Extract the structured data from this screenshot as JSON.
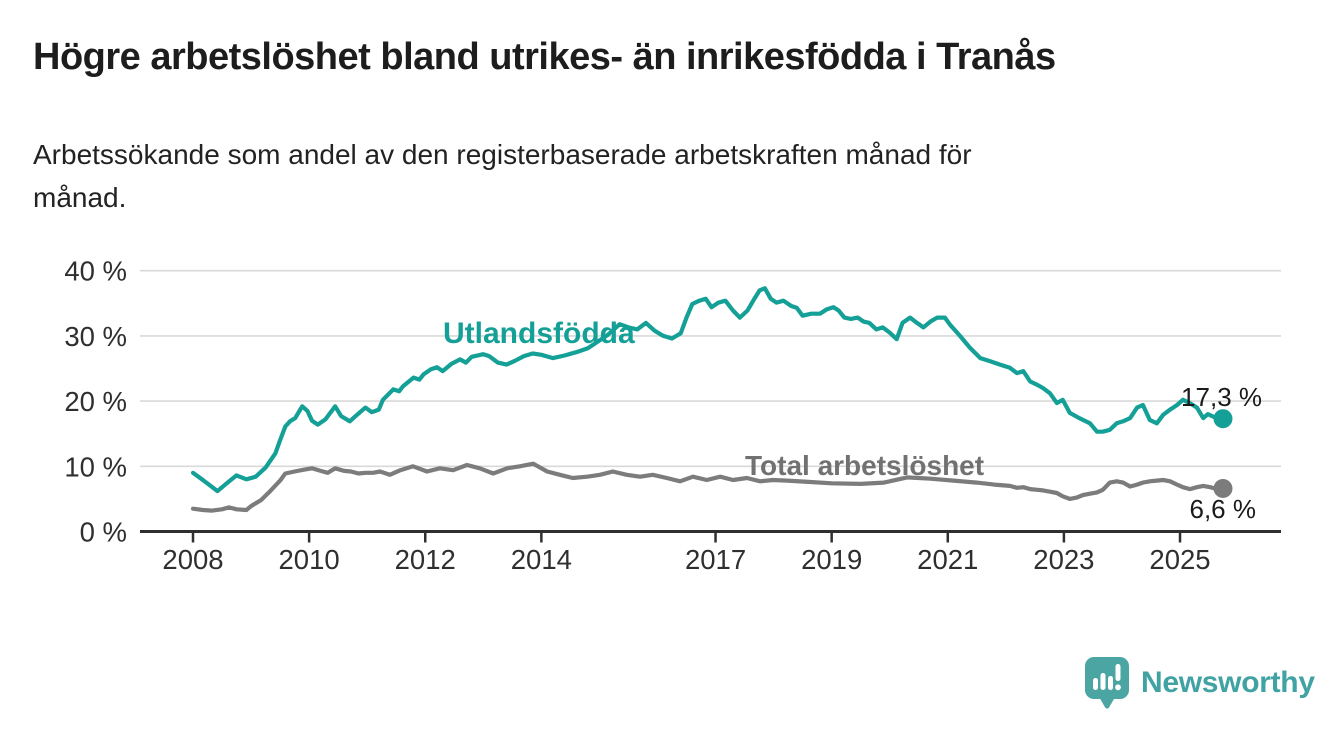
{
  "header": {
    "title": "Högre arbetslöshet bland utrikes- än inrikesfödda i Tranås",
    "subtitle_line1": "Arbetssökande som andel av den registerbaserade arbetskraften månad för",
    "subtitle_line2": "månad."
  },
  "chart_data": {
    "type": "line",
    "title": "Högre arbetslöshet bland utrikes- än inrikesfödda i Tranås",
    "subtitle": "Arbetssökande som andel av den registerbaserade arbetskraften månad för månad.",
    "unit": "%",
    "xlabel": "",
    "ylabel": "",
    "ylim": [
      0,
      42
    ],
    "grid": "horizontal",
    "x_tick_values": [
      2008,
      2010,
      2012,
      2014,
      2017,
      2019,
      2021,
      2023,
      2025
    ],
    "x_tick_labels": [
      "2008",
      "2010",
      "2012",
      "2014",
      "2017",
      "2019",
      "2021",
      "2023",
      "2025"
    ],
    "y_tick_values": [
      0,
      10,
      20,
      30,
      40
    ],
    "y_tick_labels": [
      "0 %",
      "10 %",
      "20 %",
      "30 %",
      "40 %"
    ],
    "colors": {
      "axis": "#2f2f2f",
      "gridline": "#d9d9d9",
      "value_label": "#1b1b1b"
    },
    "series": [
      {
        "name": "Utlandsfödda",
        "color": "#14a096",
        "end_label": "17,3 %",
        "points": [
          [
            2008.0,
            9.0
          ],
          [
            2008.17,
            7.9
          ],
          [
            2008.42,
            6.2
          ],
          [
            2008.58,
            7.4
          ],
          [
            2008.75,
            8.6
          ],
          [
            2008.92,
            8.0
          ],
          [
            2009.08,
            8.4
          ],
          [
            2009.25,
            9.8
          ],
          [
            2009.42,
            12.0
          ],
          [
            2009.5,
            14.0
          ],
          [
            2009.59,
            16.1
          ],
          [
            2009.67,
            16.9
          ],
          [
            2009.76,
            17.4
          ],
          [
            2009.88,
            19.2
          ],
          [
            2009.97,
            18.5
          ],
          [
            2010.05,
            17.0
          ],
          [
            2010.15,
            16.4
          ],
          [
            2010.28,
            17.2
          ],
          [
            2010.45,
            19.2
          ],
          [
            2010.55,
            17.7
          ],
          [
            2010.7,
            16.9
          ],
          [
            2010.8,
            17.7
          ],
          [
            2010.97,
            19.0
          ],
          [
            2011.08,
            18.3
          ],
          [
            2011.2,
            18.7
          ],
          [
            2011.27,
            20.2
          ],
          [
            2011.45,
            21.8
          ],
          [
            2011.55,
            21.5
          ],
          [
            2011.62,
            22.3
          ],
          [
            2011.8,
            23.6
          ],
          [
            2011.9,
            23.3
          ],
          [
            2011.97,
            24.1
          ],
          [
            2012.1,
            24.9
          ],
          [
            2012.2,
            25.2
          ],
          [
            2012.3,
            24.6
          ],
          [
            2012.45,
            25.7
          ],
          [
            2012.6,
            26.4
          ],
          [
            2012.7,
            25.9
          ],
          [
            2012.8,
            26.8
          ],
          [
            2013.0,
            27.2
          ],
          [
            2013.1,
            26.9
          ],
          [
            2013.25,
            25.9
          ],
          [
            2013.4,
            25.6
          ],
          [
            2013.55,
            26.2
          ],
          [
            2013.7,
            26.9
          ],
          [
            2013.85,
            27.3
          ],
          [
            2014.0,
            27.1
          ],
          [
            2014.2,
            26.6
          ],
          [
            2014.4,
            27.0
          ],
          [
            2014.6,
            27.5
          ],
          [
            2014.8,
            28.1
          ],
          [
            2015.0,
            29.3
          ],
          [
            2015.15,
            30.2
          ],
          [
            2015.35,
            31.8
          ],
          [
            2015.5,
            31.3
          ],
          [
            2015.65,
            31.0
          ],
          [
            2015.8,
            32.0
          ],
          [
            2015.95,
            30.8
          ],
          [
            2016.1,
            30.0
          ],
          [
            2016.25,
            29.6
          ],
          [
            2016.4,
            30.4
          ],
          [
            2016.5,
            32.8
          ],
          [
            2016.6,
            34.9
          ],
          [
            2016.72,
            35.4
          ],
          [
            2016.83,
            35.7
          ],
          [
            2016.93,
            34.4
          ],
          [
            2017.05,
            35.1
          ],
          [
            2017.17,
            35.4
          ],
          [
            2017.3,
            33.9
          ],
          [
            2017.42,
            32.8
          ],
          [
            2017.55,
            33.9
          ],
          [
            2017.67,
            35.7
          ],
          [
            2017.76,
            37.0
          ],
          [
            2017.85,
            37.3
          ],
          [
            2017.95,
            35.7
          ],
          [
            2018.05,
            35.1
          ],
          [
            2018.17,
            35.4
          ],
          [
            2018.3,
            34.6
          ],
          [
            2018.4,
            34.3
          ],
          [
            2018.5,
            33.1
          ],
          [
            2018.65,
            33.4
          ],
          [
            2018.8,
            33.4
          ],
          [
            2018.92,
            34.1
          ],
          [
            2019.03,
            34.4
          ],
          [
            2019.12,
            33.9
          ],
          [
            2019.22,
            32.8
          ],
          [
            2019.33,
            32.6
          ],
          [
            2019.45,
            32.8
          ],
          [
            2019.55,
            32.2
          ],
          [
            2019.65,
            32.0
          ],
          [
            2019.77,
            31.0
          ],
          [
            2019.88,
            31.3
          ],
          [
            2020.0,
            30.5
          ],
          [
            2020.12,
            29.5
          ],
          [
            2020.22,
            32.0
          ],
          [
            2020.35,
            32.8
          ],
          [
            2020.47,
            32.0
          ],
          [
            2020.58,
            31.3
          ],
          [
            2020.7,
            32.2
          ],
          [
            2020.82,
            32.8
          ],
          [
            2020.95,
            32.8
          ],
          [
            2021.04,
            31.7
          ],
          [
            2021.21,
            30.0
          ],
          [
            2021.38,
            28.2
          ],
          [
            2021.56,
            26.6
          ],
          [
            2021.73,
            26.1
          ],
          [
            2021.9,
            25.6
          ],
          [
            2022.07,
            25.1
          ],
          [
            2022.19,
            24.3
          ],
          [
            2022.3,
            24.6
          ],
          [
            2022.42,
            23.0
          ],
          [
            2022.54,
            22.5
          ],
          [
            2022.64,
            22.0
          ],
          [
            2022.76,
            21.2
          ],
          [
            2022.88,
            19.7
          ],
          [
            2022.98,
            20.2
          ],
          [
            2023.1,
            18.2
          ],
          [
            2023.22,
            17.6
          ],
          [
            2023.33,
            17.1
          ],
          [
            2023.45,
            16.6
          ],
          [
            2023.57,
            15.3
          ],
          [
            2023.67,
            15.3
          ],
          [
            2023.79,
            15.6
          ],
          [
            2023.91,
            16.6
          ],
          [
            2024.02,
            16.9
          ],
          [
            2024.14,
            17.4
          ],
          [
            2024.26,
            19.0
          ],
          [
            2024.36,
            19.4
          ],
          [
            2024.48,
            17.1
          ],
          [
            2024.6,
            16.6
          ],
          [
            2024.71,
            17.9
          ],
          [
            2024.83,
            18.7
          ],
          [
            2024.95,
            19.4
          ],
          [
            2025.05,
            20.2
          ],
          [
            2025.17,
            19.7
          ],
          [
            2025.29,
            19.0
          ],
          [
            2025.4,
            17.4
          ],
          [
            2025.48,
            18.0
          ],
          [
            2025.6,
            17.5
          ],
          [
            2025.74,
            17.3
          ]
        ]
      },
      {
        "name": "Total arbetslöshet",
        "color": "#7c7c7c",
        "end_label": "6,6 %",
        "points": [
          [
            2008.0,
            3.5
          ],
          [
            2008.17,
            3.3
          ],
          [
            2008.33,
            3.2
          ],
          [
            2008.5,
            3.4
          ],
          [
            2008.62,
            3.7
          ],
          [
            2008.75,
            3.4
          ],
          [
            2008.92,
            3.3
          ],
          [
            2009.0,
            3.9
          ],
          [
            2009.17,
            4.8
          ],
          [
            2009.33,
            6.2
          ],
          [
            2009.5,
            7.8
          ],
          [
            2009.59,
            8.9
          ],
          [
            2009.75,
            9.2
          ],
          [
            2009.92,
            9.5
          ],
          [
            2010.05,
            9.7
          ],
          [
            2010.2,
            9.3
          ],
          [
            2010.32,
            9.0
          ],
          [
            2010.45,
            9.7
          ],
          [
            2010.6,
            9.3
          ],
          [
            2010.72,
            9.2
          ],
          [
            2010.85,
            8.9
          ],
          [
            2010.97,
            9.0
          ],
          [
            2011.1,
            9.0
          ],
          [
            2011.22,
            9.2
          ],
          [
            2011.39,
            8.7
          ],
          [
            2011.57,
            9.4
          ],
          [
            2011.79,
            10.0
          ],
          [
            2012.03,
            9.2
          ],
          [
            2012.25,
            9.7
          ],
          [
            2012.48,
            9.4
          ],
          [
            2012.72,
            10.2
          ],
          [
            2012.94,
            9.7
          ],
          [
            2013.17,
            8.9
          ],
          [
            2013.41,
            9.7
          ],
          [
            2013.63,
            10.0
          ],
          [
            2013.86,
            10.4
          ],
          [
            2014.1,
            9.2
          ],
          [
            2014.32,
            8.7
          ],
          [
            2014.54,
            8.2
          ],
          [
            2014.79,
            8.4
          ],
          [
            2015.01,
            8.7
          ],
          [
            2015.23,
            9.2
          ],
          [
            2015.47,
            8.7
          ],
          [
            2015.7,
            8.4
          ],
          [
            2015.92,
            8.7
          ],
          [
            2016.16,
            8.2
          ],
          [
            2016.39,
            7.7
          ],
          [
            2016.61,
            8.4
          ],
          [
            2016.85,
            7.9
          ],
          [
            2017.08,
            8.4
          ],
          [
            2017.3,
            7.9
          ],
          [
            2017.54,
            8.2
          ],
          [
            2017.77,
            7.7
          ],
          [
            2017.99,
            7.9
          ],
          [
            2018.23,
            7.8
          ],
          [
            2018.6,
            7.6
          ],
          [
            2019.0,
            7.4
          ],
          [
            2019.5,
            7.3
          ],
          [
            2019.9,
            7.5
          ],
          [
            2020.3,
            8.3
          ],
          [
            2020.7,
            8.1
          ],
          [
            2021.1,
            7.8
          ],
          [
            2021.5,
            7.5
          ],
          [
            2021.8,
            7.2
          ],
          [
            2022.07,
            7.0
          ],
          [
            2022.19,
            6.7
          ],
          [
            2022.3,
            6.8
          ],
          [
            2022.42,
            6.5
          ],
          [
            2022.54,
            6.4
          ],
          [
            2022.64,
            6.3
          ],
          [
            2022.76,
            6.1
          ],
          [
            2022.88,
            5.9
          ],
          [
            2022.98,
            5.4
          ],
          [
            2023.1,
            5.0
          ],
          [
            2023.22,
            5.2
          ],
          [
            2023.33,
            5.6
          ],
          [
            2023.45,
            5.8
          ],
          [
            2023.57,
            6.0
          ],
          [
            2023.67,
            6.4
          ],
          [
            2023.79,
            7.5
          ],
          [
            2023.91,
            7.7
          ],
          [
            2024.02,
            7.5
          ],
          [
            2024.14,
            6.9
          ],
          [
            2024.26,
            7.2
          ],
          [
            2024.36,
            7.5
          ],
          [
            2024.48,
            7.7
          ],
          [
            2024.6,
            7.8
          ],
          [
            2024.71,
            7.9
          ],
          [
            2024.83,
            7.7
          ],
          [
            2024.95,
            7.2
          ],
          [
            2025.05,
            6.8
          ],
          [
            2025.17,
            6.5
          ],
          [
            2025.29,
            6.8
          ],
          [
            2025.4,
            7.0
          ],
          [
            2025.52,
            6.8
          ],
          [
            2025.64,
            6.5
          ],
          [
            2025.74,
            6.6
          ]
        ]
      }
    ]
  },
  "logo": {
    "text": "Newsworthy",
    "text_color": "#40a2a2",
    "icon_color": "#4ba6a3",
    "icon": "newsworthy-speech-bubble-bars-icon"
  }
}
